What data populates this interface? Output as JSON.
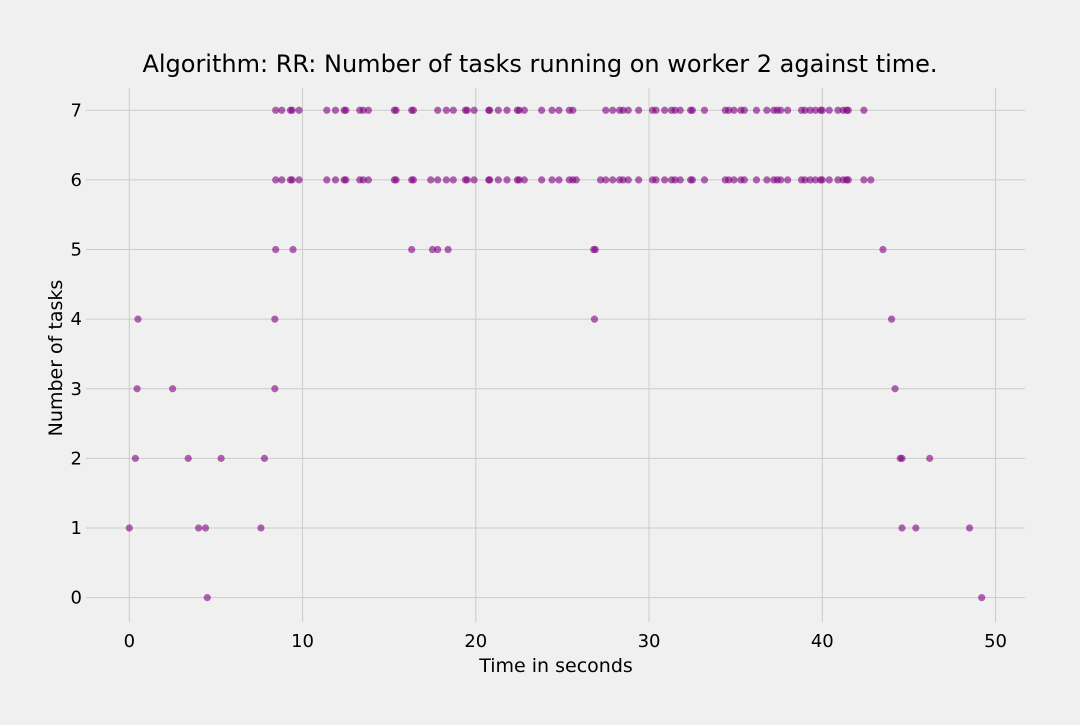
{
  "chart_data": {
    "type": "scatter",
    "title": "Algorithm: RR: Number of tasks running on worker 2 against time.",
    "xlabel": "Time in seconds",
    "ylabel": "Number of tasks",
    "xlim": [
      -2.5,
      51.7
    ],
    "ylim": [
      -0.35,
      7.32
    ],
    "xticks": [
      0,
      10,
      20,
      30,
      40,
      50
    ],
    "yticks": [
      0,
      1,
      2,
      3,
      4,
      5,
      6,
      7
    ],
    "grid": true,
    "background": "#f0f0f0",
    "marker_color": "#800080",
    "marker_opacity": 0.6,
    "points": [
      [
        0.0,
        1
      ],
      [
        0.35,
        2
      ],
      [
        0.45,
        3
      ],
      [
        0.5,
        4
      ],
      [
        2.5,
        3
      ],
      [
        3.4,
        2
      ],
      [
        4.0,
        1
      ],
      [
        4.4,
        1
      ],
      [
        4.5,
        0
      ],
      [
        5.3,
        2
      ],
      [
        7.6,
        1
      ],
      [
        7.8,
        2
      ],
      [
        8.4,
        3
      ],
      [
        8.4,
        4
      ],
      [
        8.45,
        5
      ],
      [
        8.45,
        6
      ],
      [
        8.45,
        7
      ],
      [
        8.8,
        6
      ],
      [
        8.8,
        7
      ],
      [
        9.3,
        6
      ],
      [
        9.3,
        7
      ],
      [
        9.4,
        6
      ],
      [
        9.4,
        7
      ],
      [
        9.45,
        5
      ],
      [
        9.8,
        6
      ],
      [
        9.8,
        7
      ],
      [
        11.4,
        6
      ],
      [
        11.4,
        7
      ],
      [
        11.9,
        6
      ],
      [
        11.9,
        7
      ],
      [
        12.4,
        6
      ],
      [
        12.4,
        7
      ],
      [
        12.5,
        6
      ],
      [
        12.5,
        7
      ],
      [
        13.3,
        6
      ],
      [
        13.3,
        7
      ],
      [
        13.5,
        6
      ],
      [
        13.5,
        7
      ],
      [
        13.8,
        6
      ],
      [
        13.8,
        7
      ],
      [
        15.3,
        6
      ],
      [
        15.3,
        7
      ],
      [
        15.4,
        6
      ],
      [
        15.4,
        7
      ],
      [
        16.3,
        5
      ],
      [
        16.3,
        6
      ],
      [
        16.3,
        7
      ],
      [
        16.4,
        6
      ],
      [
        16.4,
        7
      ],
      [
        17.4,
        6
      ],
      [
        17.5,
        5
      ],
      [
        17.8,
        5
      ],
      [
        17.8,
        6
      ],
      [
        17.8,
        7
      ],
      [
        18.3,
        6
      ],
      [
        18.3,
        7
      ],
      [
        18.4,
        5
      ],
      [
        18.7,
        6
      ],
      [
        18.7,
        7
      ],
      [
        19.4,
        6
      ],
      [
        19.4,
        7
      ],
      [
        19.5,
        6
      ],
      [
        19.5,
        7
      ],
      [
        19.9,
        6
      ],
      [
        19.9,
        7
      ],
      [
        20.8,
        6
      ],
      [
        20.8,
        7
      ],
      [
        20.75,
        6
      ],
      [
        20.75,
        7
      ],
      [
        21.3,
        6
      ],
      [
        21.3,
        7
      ],
      [
        21.8,
        6
      ],
      [
        21.8,
        7
      ],
      [
        22.4,
        6
      ],
      [
        22.4,
        7
      ],
      [
        22.5,
        6
      ],
      [
        22.5,
        7
      ],
      [
        22.8,
        6
      ],
      [
        22.8,
        7
      ],
      [
        23.8,
        6
      ],
      [
        23.8,
        7
      ],
      [
        24.4,
        6
      ],
      [
        24.4,
        7
      ],
      [
        24.8,
        6
      ],
      [
        24.8,
        7
      ],
      [
        25.4,
        6
      ],
      [
        25.4,
        7
      ],
      [
        25.6,
        6
      ],
      [
        25.6,
        7
      ],
      [
        25.8,
        6
      ],
      [
        26.8,
        5
      ],
      [
        26.85,
        4
      ],
      [
        26.9,
        5
      ],
      [
        27.2,
        6
      ],
      [
        27.5,
        6
      ],
      [
        27.5,
        7
      ],
      [
        27.9,
        6
      ],
      [
        27.9,
        7
      ],
      [
        28.3,
        6
      ],
      [
        28.3,
        7
      ],
      [
        28.5,
        6
      ],
      [
        28.5,
        7
      ],
      [
        28.8,
        6
      ],
      [
        28.8,
        7
      ],
      [
        29.4,
        6
      ],
      [
        29.4,
        7
      ],
      [
        30.2,
        6
      ],
      [
        30.2,
        7
      ],
      [
        30.4,
        6
      ],
      [
        30.4,
        7
      ],
      [
        30.9,
        6
      ],
      [
        30.9,
        7
      ],
      [
        31.3,
        6
      ],
      [
        31.3,
        7
      ],
      [
        31.5,
        6
      ],
      [
        31.5,
        7
      ],
      [
        31.8,
        6
      ],
      [
        31.8,
        7
      ],
      [
        32.4,
        6
      ],
      [
        32.4,
        7
      ],
      [
        32.5,
        6
      ],
      [
        32.5,
        7
      ],
      [
        33.2,
        6
      ],
      [
        33.2,
        7
      ],
      [
        34.4,
        6
      ],
      [
        34.4,
        7
      ],
      [
        34.6,
        6
      ],
      [
        34.6,
        7
      ],
      [
        34.9,
        6
      ],
      [
        34.9,
        7
      ],
      [
        35.3,
        6
      ],
      [
        35.3,
        7
      ],
      [
        35.5,
        6
      ],
      [
        35.5,
        7
      ],
      [
        36.2,
        6
      ],
      [
        36.2,
        7
      ],
      [
        36.8,
        6
      ],
      [
        36.8,
        7
      ],
      [
        37.2,
        6
      ],
      [
        37.2,
        7
      ],
      [
        37.4,
        6
      ],
      [
        37.4,
        7
      ],
      [
        37.6,
        6
      ],
      [
        37.6,
        7
      ],
      [
        38.0,
        6
      ],
      [
        38.0,
        7
      ],
      [
        38.8,
        6
      ],
      [
        38.8,
        7
      ],
      [
        39.0,
        6
      ],
      [
        39.0,
        7
      ],
      [
        39.3,
        6
      ],
      [
        39.3,
        7
      ],
      [
        39.6,
        6
      ],
      [
        39.6,
        7
      ],
      [
        39.9,
        6
      ],
      [
        39.9,
        7
      ],
      [
        40.0,
        6
      ],
      [
        40.0,
        7
      ],
      [
        40.4,
        6
      ],
      [
        40.4,
        7
      ],
      [
        40.9,
        6
      ],
      [
        40.9,
        7
      ],
      [
        41.2,
        6
      ],
      [
        41.2,
        7
      ],
      [
        41.4,
        6
      ],
      [
        41.4,
        7
      ],
      [
        41.5,
        6
      ],
      [
        41.5,
        7
      ],
      [
        42.4,
        6
      ],
      [
        42.4,
        7
      ],
      [
        42.8,
        6
      ],
      [
        43.5,
        5
      ],
      [
        44.0,
        4
      ],
      [
        44.2,
        3
      ],
      [
        44.5,
        2
      ],
      [
        44.6,
        2
      ],
      [
        44.6,
        1
      ],
      [
        45.4,
        1
      ],
      [
        46.2,
        2
      ],
      [
        48.5,
        1
      ],
      [
        49.2,
        0
      ]
    ]
  }
}
